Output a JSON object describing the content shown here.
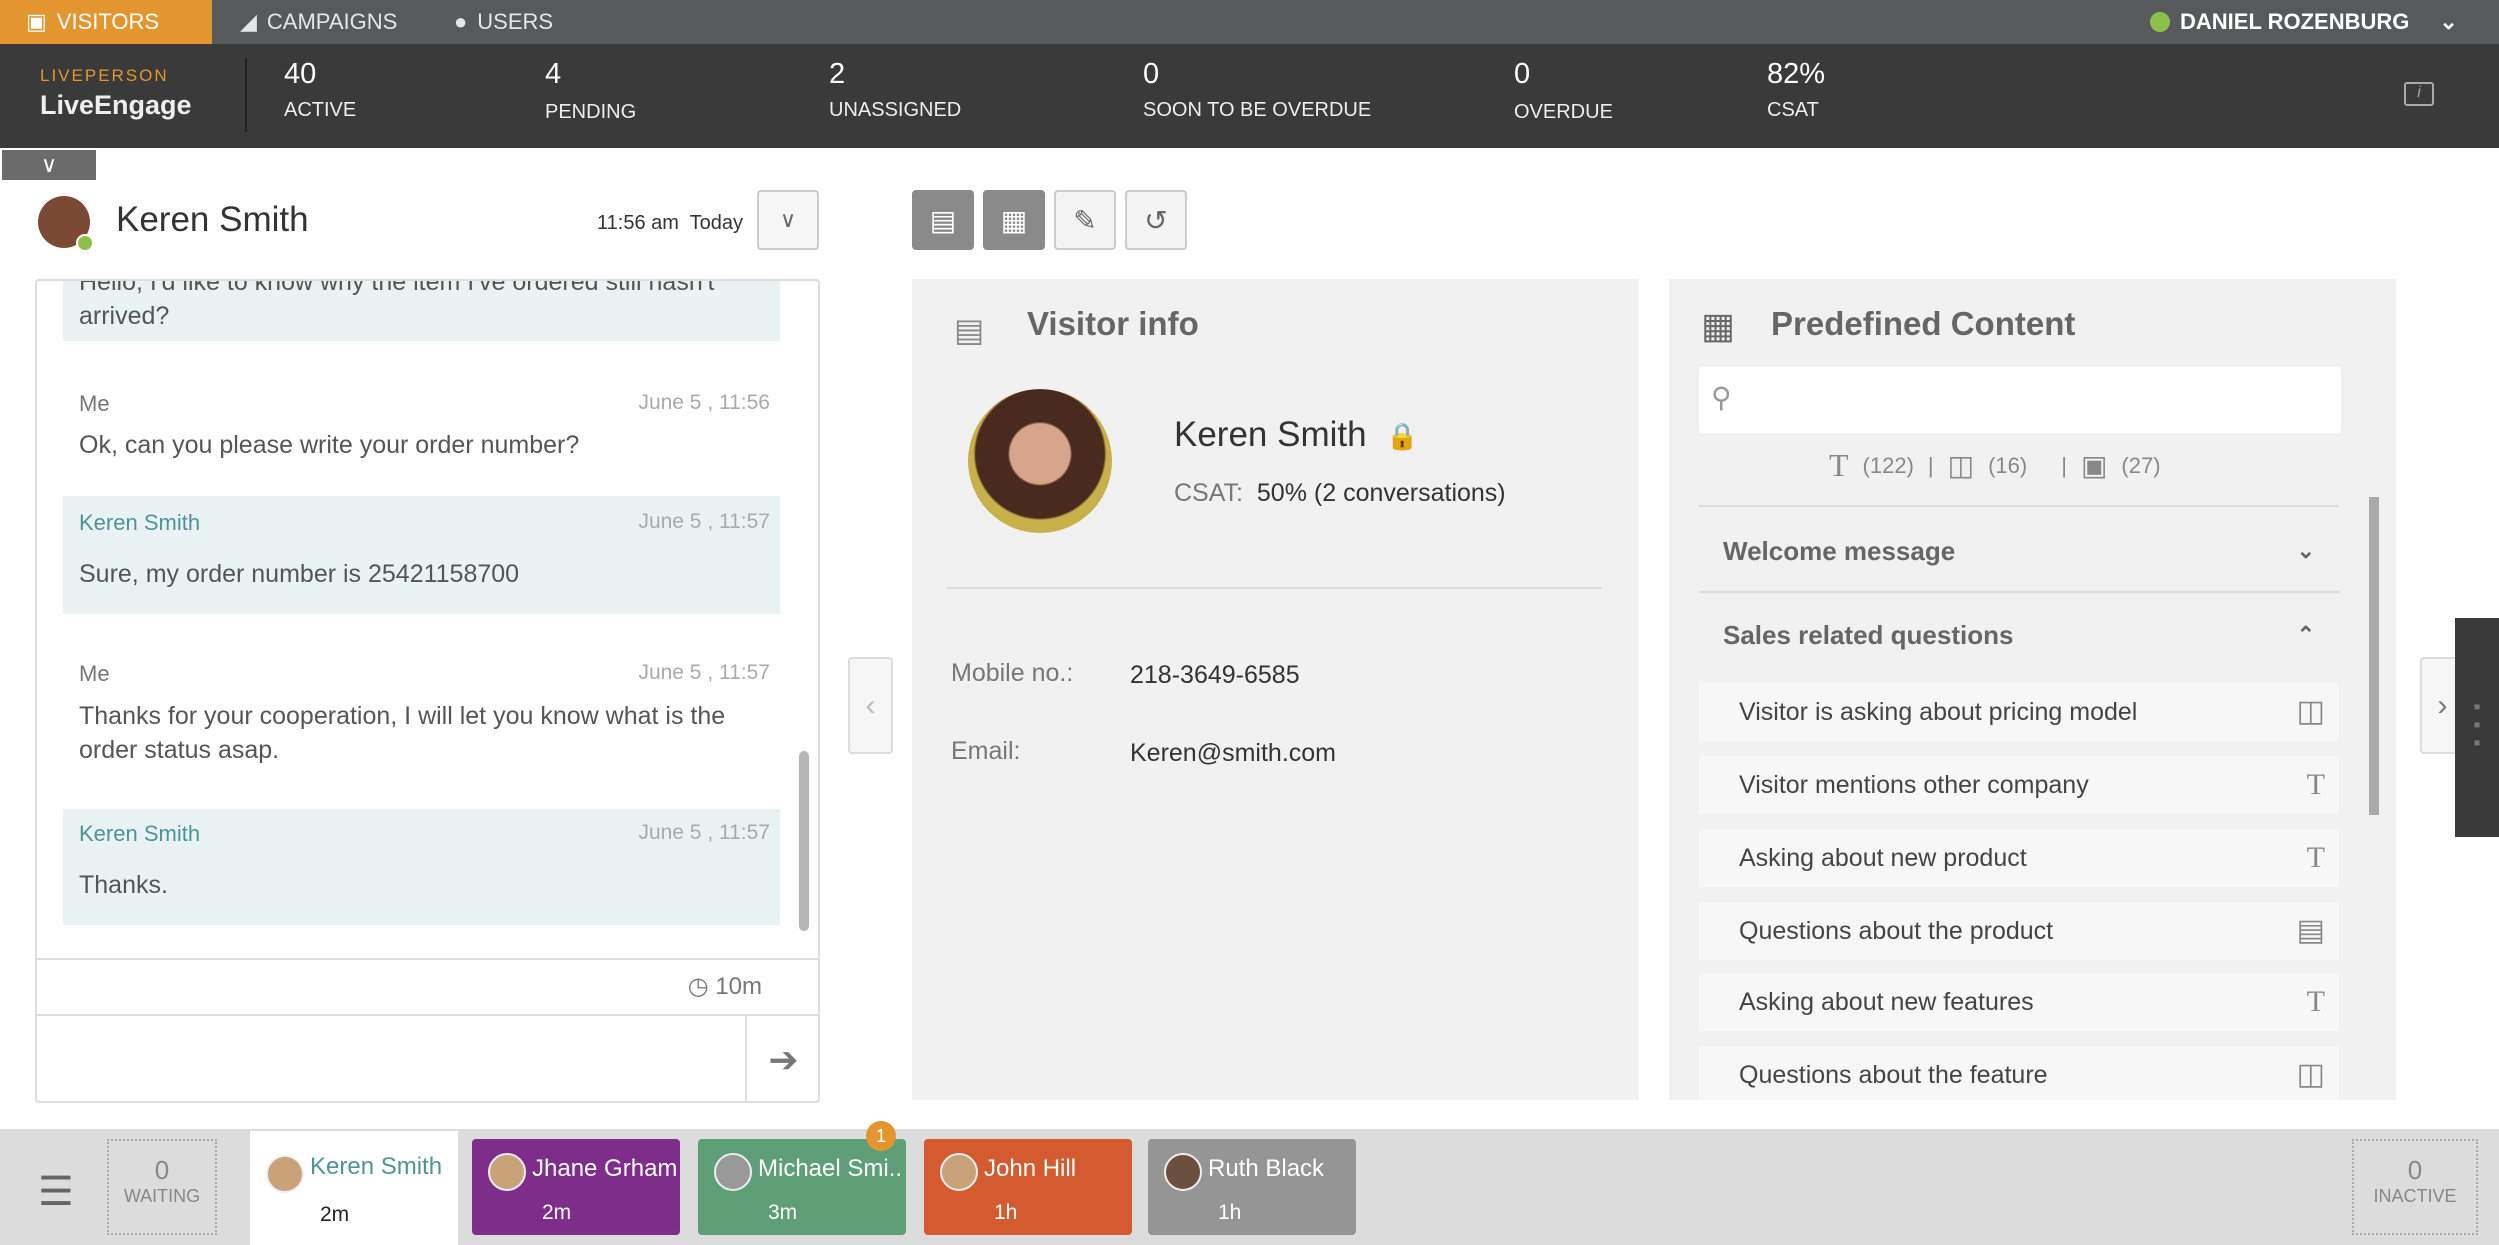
{
  "nav": {
    "tabs": [
      {
        "label": "VISITORS",
        "icon": "chat-bubble-icon"
      },
      {
        "label": "CAMPAIGNS",
        "icon": "tag-icon"
      },
      {
        "label": "USERS",
        "icon": "user-icon"
      }
    ],
    "user": "DANIEL ROZENBURG",
    "user_status_color": "#8cc04b"
  },
  "brand": {
    "top": "LIVEPERSON",
    "name": "LiveEngage",
    "accent": "#e3962f"
  },
  "stats": [
    {
      "n": "40",
      "l": "ACTIVE"
    },
    {
      "n": "4",
      "l": "PENDING"
    },
    {
      "n": "2",
      "l": "UNASSIGNED"
    },
    {
      "n": "0",
      "l": "SOON TO BE OVERDUE"
    },
    {
      "n": "0",
      "l": "OVERDUE"
    },
    {
      "n": "82%",
      "l": "CSAT"
    }
  ],
  "chat": {
    "name": "Keren Smith",
    "time": "11:56 am",
    "day": "Today",
    "elapsed": "10m",
    "messages": [
      {
        "who": "",
        "ts": "",
        "text": "Hello, I'd like to know why the item I've ordered still hasn't arrived?"
      },
      {
        "who": "Me",
        "ts": "June 5 , 11:56",
        "text": "Ok, can you please write your order number?"
      },
      {
        "who": "Keren Smith",
        "ts": "June 5 , 11:57",
        "text": "Sure, my order number is 25421158700"
      },
      {
        "who": "Me",
        "ts": "June 5 , 11:57",
        "text": "Thanks for your cooperation, I will let you know what is the order status asap."
      },
      {
        "who": "Keren Smith",
        "ts": "June 5 , 11:57",
        "text": "Thanks."
      }
    ]
  },
  "visitor": {
    "title": "Visitor info",
    "name": "Keren Smith",
    "csat_label": "CSAT:",
    "csat": "50% (2 conversations)",
    "mobile_label": "Mobile no.:",
    "mobile": "218-3649-6585",
    "email_label": "Email:",
    "email": "Keren@smith.com"
  },
  "predefined": {
    "title": "Predefined Content",
    "search_placeholder": "",
    "counts": {
      "text": "(122)",
      "video": "(16)",
      "image": "(27)"
    },
    "categories": [
      {
        "label": "Welcome message",
        "expanded": false
      },
      {
        "label": "Sales related questions",
        "expanded": true
      }
    ],
    "items": [
      {
        "label": "Visitor is asking about pricing model",
        "type": "video"
      },
      {
        "label": "Visitor mentions other company",
        "type": "text"
      },
      {
        "label": "Asking about new product",
        "type": "text"
      },
      {
        "label": "Questions about the product",
        "type": "image"
      },
      {
        "label": "Asking about new features",
        "type": "text"
      },
      {
        "label": "Questions about the feature",
        "type": "video"
      }
    ]
  },
  "bottom": {
    "waiting": {
      "n": "0",
      "l": "WAITING"
    },
    "inactive": {
      "n": "0",
      "l": "INACTIVE"
    },
    "tabs": [
      {
        "name": "Keren Smith",
        "time": "2m",
        "color": "#ffffff"
      },
      {
        "name": "Jhane Grham",
        "time": "2m",
        "color": "#7e2d8a"
      },
      {
        "name": "Michael Smi..",
        "time": "3m",
        "color": "#5f9f78",
        "badge": "1"
      },
      {
        "name": "John Hill",
        "time": "1h",
        "color": "#d35b2f"
      },
      {
        "name": "Ruth Black",
        "time": "1h",
        "color": "#959595"
      }
    ]
  }
}
